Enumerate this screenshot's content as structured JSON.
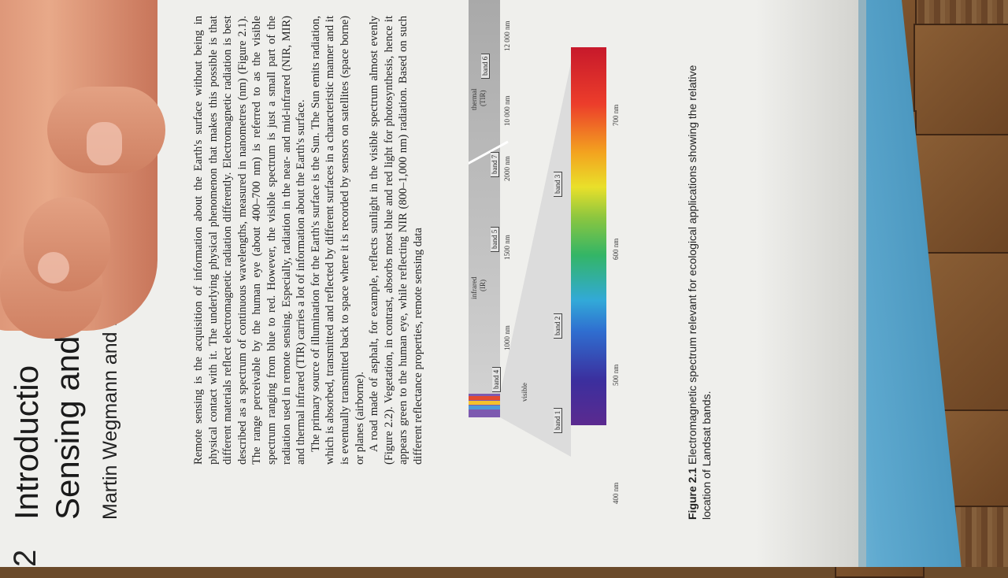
{
  "chapter": {
    "number": "2",
    "title_line1": "Introductio",
    "title_line2": "Sensing and GI",
    "authors": "Martin Wegmann and Benjamin Leu"
  },
  "body_paragraphs": [
    "Remote sensing is the acquisition of information about the Earth's surface without being in physical contact with it. The underlying physical phenomenon that makes this possible is that different materials reflect electromagnetic radiation differently. Electromagnetic radiation is best described as a spectrum of continuous wavelengths, measured in nanometres (nm) (Figure 2.1). The range perceivable by the human eye (about 400–700 nm) is referred to as the visible spectrum ranging from blue to red. However, the visible spectrum is just a small part of the radiation used in remote sensing. Especially, radiation in the near- and mid-infrared (NIR, MIR) and thermal infrared (TIR) carries a lot of information about the Earth's surface.",
    "The primary source of illumination for the Earth's surface is the Sun. The Sun emits radiation, which is absorbed, transmitted and reflected by different surfaces in a characteristic manner and it is eventually transmitted back to space where it is recorded by sensors on satellites (space borne) or planes (airborne).",
    "A road made of asphalt, for example, reflects sunlight in the visible spectrum almost evenly (Figure 2.2). Vegetation, in contrast, absorbs most blue and red light for photosynthesis, hence it appears green to the human eye, while reflecting NIR (800–1,000 nm) radiation. Based on such different reflectance properties, remote sensing data"
  ],
  "figure": {
    "labels": {
      "visible": "visible",
      "infrared": "infrared",
      "infrared_abbr": "(IR)",
      "thermal": "thermal",
      "thermal_abbr": "(TIR)"
    },
    "top_ticks": [
      "1000 nm",
      "1500 nm",
      "2000 nm",
      "10 000 nm",
      "12 000 nm"
    ],
    "bottom_ticks": [
      "400 nm",
      "500 nm",
      "600 nm",
      "700 nm"
    ],
    "bands_top": [
      "band 4",
      "band 5",
      "band 7",
      "band 6"
    ],
    "bands_bottom": [
      "band 1",
      "band 2",
      "band 3"
    ],
    "caption_label": "Figure 2.1",
    "caption_text": "Electromagnetic spectrum relevant for ecological applications showing the relative location of Landsat bands."
  },
  "colors": {
    "page": "#efefec",
    "book_cover": "#5ea9cf",
    "wood": "#7b5533",
    "skin": "#e0a083"
  }
}
